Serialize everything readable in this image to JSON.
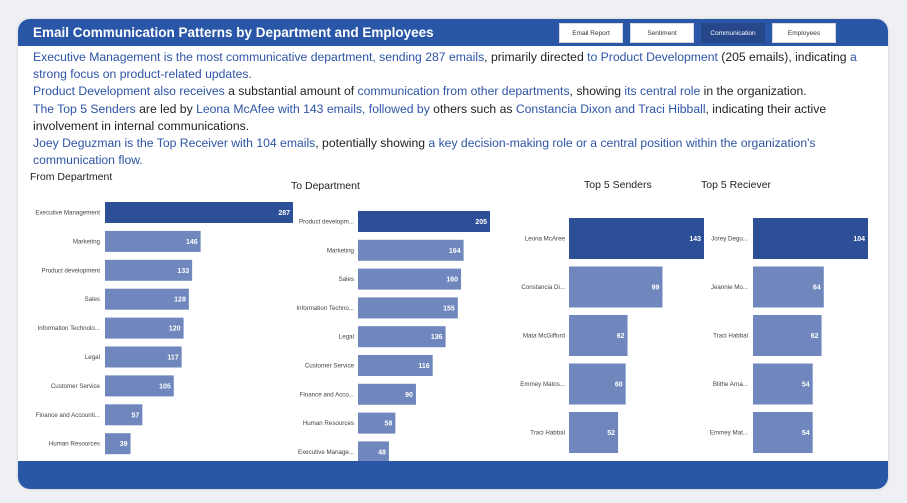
{
  "header": {
    "title": "Email Communication Patterns by Department and Employees",
    "tabs": [
      {
        "label": "Email Report",
        "active": false
      },
      {
        "label": "Sentiment",
        "active": false
      },
      {
        "label": "Communication",
        "active": true
      },
      {
        "label": "Employees",
        "active": false
      }
    ]
  },
  "summary": {
    "p1": [
      {
        "t": "Executive Management is the most communicative department, sending 287 emails",
        "hl": true
      },
      {
        "t": ", primarily directed ",
        "hl": false
      },
      {
        "t": "to Product Development",
        "hl": true
      },
      {
        "t": " (205 emails), indicating ",
        "hl": false
      },
      {
        "t": "a strong focus on product-related updates.",
        "hl": true
      }
    ],
    "p2": [
      {
        "t": "Product Development also receives",
        "hl": true
      },
      {
        "t": " a substantial amount of ",
        "hl": false
      },
      {
        "t": "communication from other departments",
        "hl": true
      },
      {
        "t": ", showing ",
        "hl": false
      },
      {
        "t": "its central role",
        "hl": true
      },
      {
        "t": " in the organization.",
        "hl": false
      }
    ],
    "p3": [
      {
        "t": "The Top 5 Senders",
        "hl": true
      },
      {
        "t": " are led by ",
        "hl": false
      },
      {
        "t": "Leona McAfee with 143 emails, followed by",
        "hl": true
      },
      {
        "t": " others such as ",
        "hl": false
      },
      {
        "t": "Constancia Dixon and Traci Hibball",
        "hl": true
      },
      {
        "t": ", indicating their active involvement in internal communications.",
        "hl": false
      }
    ],
    "p4": [
      {
        "t": "Joey Deguzman is the Top Receiver with 104 emails",
        "hl": true
      },
      {
        "t": ", potentially showing ",
        "hl": false
      },
      {
        "t": "a key decision-making role or a central position within the organization's communication flow.",
        "hl": true
      }
    ]
  },
  "colors": {
    "header_bg": "#2a56a7",
    "bar_top": "#2d4f97",
    "bar_other": "#6f87bd",
    "highlight_text": "#2d54a6"
  },
  "chart_data": [
    {
      "type": "bar",
      "orientation": "horizontal",
      "title": "From Department",
      "categories": [
        "Executive Management",
        "Marketing",
        "Product development",
        "Sales",
        "Information Technolo...",
        "Legal",
        "Customer Service",
        "Finance and Accounti...",
        "Human Resources"
      ],
      "values": [
        287,
        146,
        133,
        128,
        120,
        117,
        105,
        57,
        39
      ]
    },
    {
      "type": "bar",
      "orientation": "horizontal",
      "title": "To Department",
      "categories": [
        "Product developm...",
        "Marketing",
        "Sales",
        "Information Techno...",
        "Legal",
        "Customer Service",
        "Finance and Acco...",
        "Human Resources",
        "Executive Manage..."
      ],
      "values": [
        205,
        164,
        160,
        155,
        136,
        116,
        90,
        58,
        48
      ]
    },
    {
      "type": "bar",
      "orientation": "horizontal",
      "title": "Top 5 Senders",
      "categories": [
        "Leona McAree",
        "Constancia Di...",
        "Mata McGifford",
        "Emmey Matos...",
        "Traci Habbal"
      ],
      "values": [
        143,
        99,
        62,
        60,
        52
      ]
    },
    {
      "type": "bar",
      "orientation": "horizontal",
      "title": "Top 5 Reciever",
      "categories": [
        "Jorey Degu...",
        "Jeannie Mo...",
        "Traci Habbal",
        "Blithe Arna...",
        "Emmey Mat..."
      ],
      "values": [
        104,
        64,
        62,
        54,
        54
      ]
    }
  ]
}
